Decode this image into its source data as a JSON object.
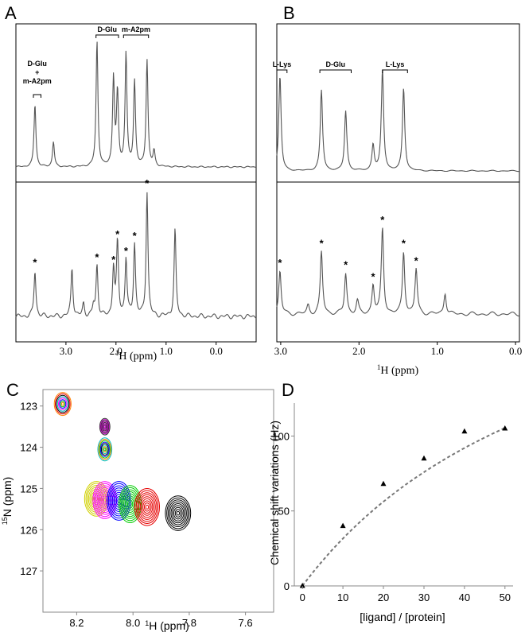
{
  "chart_data": [
    {
      "panel": "A",
      "type": "line",
      "xlabel": "1H (ppm)",
      "xlim": [
        4.0,
        -0.8
      ],
      "xticks": [
        "3.0",
        "2.0",
        "1.0",
        "0.0"
      ],
      "top_annotations": [
        {
          "text": "D-Glu",
          "x1": 2.4,
          "x2": 1.95
        },
        {
          "text": "m-A2pm",
          "x1": 1.85,
          "x2": 1.35
        },
        {
          "text": "D-Glu",
          "line2": "+",
          "line3": "m-A2pm",
          "x1": 3.65,
          "x2": 3.5
        }
      ],
      "top_peaks": [
        {
          "ppm": 3.62,
          "h": 0.5
        },
        {
          "ppm": 3.25,
          "h": 0.2
        },
        {
          "ppm": 2.38,
          "h": 1.0
        },
        {
          "ppm": 2.05,
          "h": 0.7
        },
        {
          "ppm": 1.97,
          "h": 0.58
        },
        {
          "ppm": 1.8,
          "h": 0.9
        },
        {
          "ppm": 1.63,
          "h": 0.68
        },
        {
          "ppm": 1.38,
          "h": 0.85
        },
        {
          "ppm": 1.24,
          "h": 0.12
        }
      ],
      "bottom_peaks": [
        {
          "ppm": 3.62,
          "h": 0.36,
          "star": true
        },
        {
          "ppm": 2.88,
          "h": 0.38
        },
        {
          "ppm": 2.65,
          "h": 0.1
        },
        {
          "ppm": 2.45,
          "h": 0.08
        },
        {
          "ppm": 2.38,
          "h": 0.4,
          "star": true
        },
        {
          "ppm": 2.05,
          "h": 0.38,
          "star": true
        },
        {
          "ppm": 1.97,
          "h": 0.58,
          "star": true
        },
        {
          "ppm": 1.8,
          "h": 0.45,
          "star": true
        },
        {
          "ppm": 1.63,
          "h": 0.57,
          "star": true
        },
        {
          "ppm": 1.38,
          "h": 0.98,
          "star": true
        },
        {
          "ppm": 0.82,
          "h": 0.68
        }
      ]
    },
    {
      "panel": "B",
      "type": "line",
      "xlabel": "1H (ppm)",
      "xlim": [
        3.05,
        -0.05
      ],
      "xticks": [
        "3.0",
        "2.0",
        "1.0",
        "0.0"
      ],
      "top_annotations": [
        {
          "text": "L-Lys",
          "x1": 3.05,
          "x2": 2.92
        },
        {
          "text": "D-Glu",
          "x1": 2.5,
          "x2": 2.1
        },
        {
          "text": "L-Lys",
          "x1": 1.7,
          "x2": 1.38
        }
      ],
      "top_peaks": [
        {
          "ppm": 3.01,
          "h": 0.92
        },
        {
          "ppm": 2.48,
          "h": 0.78
        },
        {
          "ppm": 2.17,
          "h": 0.58
        },
        {
          "ppm": 1.82,
          "h": 0.25
        },
        {
          "ppm": 1.7,
          "h": 0.98
        },
        {
          "ppm": 1.43,
          "h": 0.8
        }
      ],
      "bottom_peaks": [
        {
          "ppm": 3.01,
          "h": 0.4,
          "star": true
        },
        {
          "ppm": 2.65,
          "h": 0.08
        },
        {
          "ppm": 2.48,
          "h": 0.58,
          "star": true
        },
        {
          "ppm": 2.17,
          "h": 0.38,
          "star": true
        },
        {
          "ppm": 2.02,
          "h": 0.12
        },
        {
          "ppm": 1.82,
          "h": 0.27,
          "star": true
        },
        {
          "ppm": 1.7,
          "h": 0.8,
          "star": true
        },
        {
          "ppm": 1.43,
          "h": 0.58,
          "star": true
        },
        {
          "ppm": 1.27,
          "h": 0.42,
          "star": true
        },
        {
          "ppm": 0.9,
          "h": 0.2
        }
      ]
    },
    {
      "panel": "C",
      "type": "scatter",
      "xlabel": "1H (ppm)",
      "ylabel": "15N (ppm)",
      "xlim": [
        8.32,
        7.5
      ],
      "ylim": [
        122.6,
        128.0
      ],
      "xticks": [
        "8.2",
        "8.0",
        "7.8",
        "7.6"
      ],
      "yticks": [
        "123",
        "124",
        "125",
        "126",
        "127"
      ],
      "peaks": [
        {
          "x": 8.25,
          "y": 122.95,
          "rx": 0.03,
          "ry": 0.28,
          "colors": [
            "#e60000",
            "#ff8000",
            "#00cc00",
            "#0000ff",
            "#ff00ff",
            "#00c0c0",
            "#000000"
          ]
        },
        {
          "x": 8.1,
          "y": 123.5,
          "rx": 0.018,
          "ry": 0.2,
          "colors": [
            "#333333",
            "#cc00cc"
          ]
        },
        {
          "x": 8.1,
          "y": 124.05,
          "rx": 0.025,
          "ry": 0.28,
          "colors": [
            "#0000ff",
            "#00cc00",
            "#ff8000",
            "#00c0c0",
            "#000000"
          ]
        },
        {
          "x": 8.13,
          "y": 125.25,
          "rx": 0.042,
          "ry": 0.42,
          "color": "#d0d000"
        },
        {
          "x": 8.1,
          "y": 125.28,
          "rx": 0.042,
          "ry": 0.45,
          "color": "#ff00ff"
        },
        {
          "x": 8.05,
          "y": 125.3,
          "rx": 0.042,
          "ry": 0.47,
          "color": "#0000ff"
        },
        {
          "x": 8.01,
          "y": 125.38,
          "rx": 0.04,
          "ry": 0.45,
          "color": "#00cc00"
        },
        {
          "x": 7.95,
          "y": 125.45,
          "rx": 0.044,
          "ry": 0.45,
          "color": "#e60000"
        },
        {
          "x": 7.84,
          "y": 125.6,
          "rx": 0.045,
          "ry": 0.42,
          "color": "#000000"
        }
      ]
    },
    {
      "panel": "D",
      "type": "scatter",
      "xlabel": "[ligand] / [protein]",
      "ylabel": "Chemical shift variations (Hz)",
      "xlim": [
        -2,
        52
      ],
      "ylim": [
        0,
        122
      ],
      "xticks": [
        0,
        10,
        20,
        30,
        40,
        50
      ],
      "yticks": [
        0,
        50,
        100
      ],
      "x": [
        0,
        10,
        20,
        30,
        40,
        50
      ],
      "y": [
        0,
        40,
        68,
        85,
        103,
        105
      ],
      "fit": {
        "style": "dashed",
        "vmax": 253,
        "kd": 70
      }
    }
  ],
  "labels": {
    "panel_a": "A",
    "panel_b": "B",
    "panel_c": "C",
    "panel_d": "D",
    "star": "*"
  }
}
